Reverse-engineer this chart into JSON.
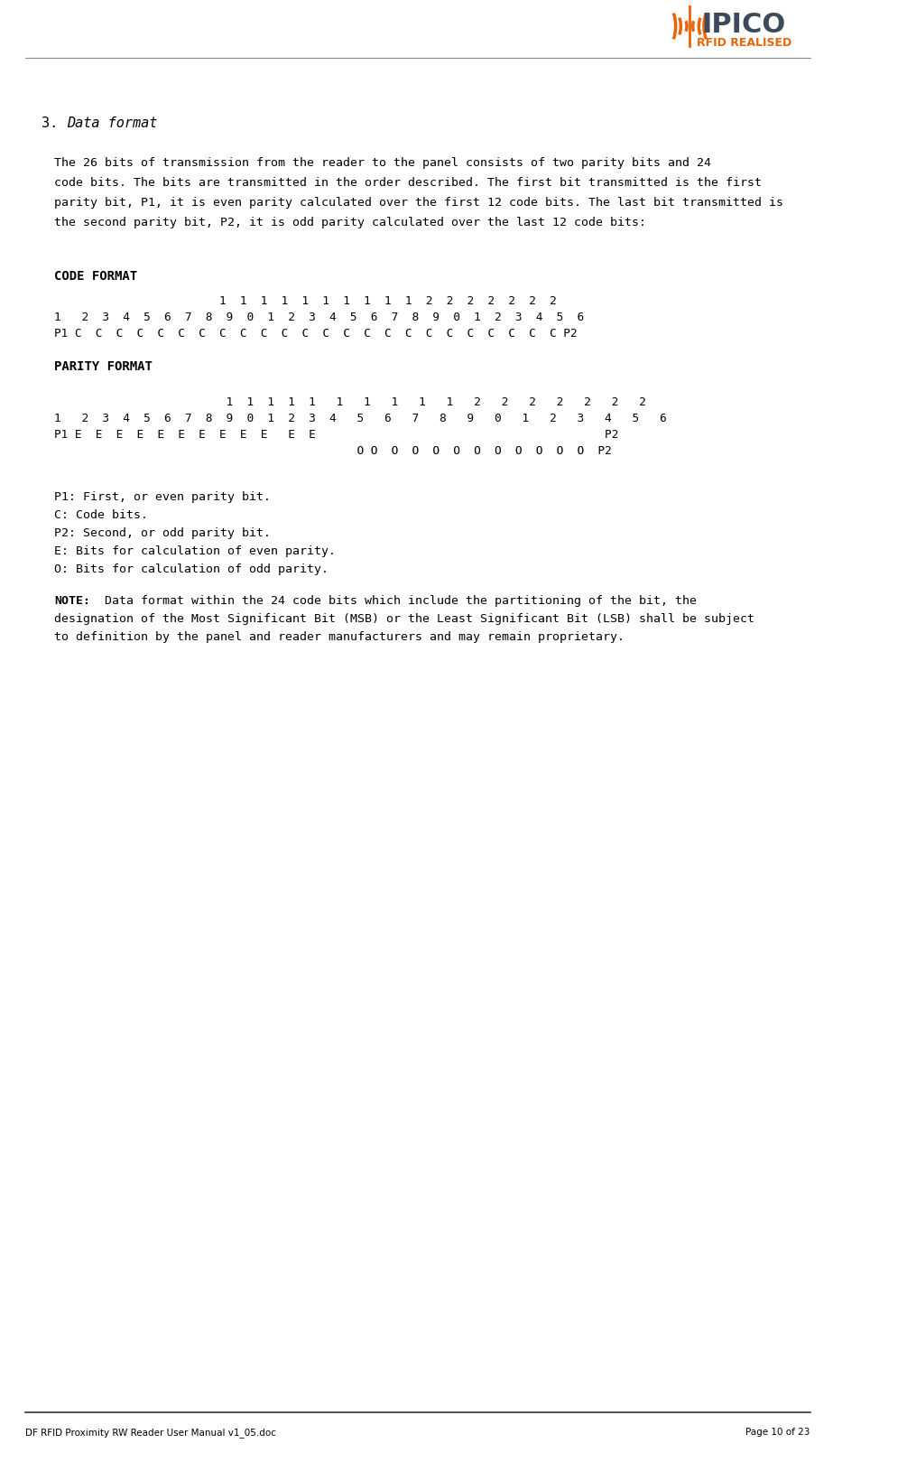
{
  "bg_color": "#ffffff",
  "logo_text": "IPICO",
  "logo_sub": "RFID REALISED",
  "logo_color": "#3d4a5c",
  "logo_orange": "#e8650a",
  "footer_left": "DF RFID Proximity RW Reader User Manual v1_05.doc",
  "footer_right": "Page 10 of 23",
  "section_num": "3.",
  "section_title": "Data format",
  "body_text": "The 26 bits of transmission from the reader to the panel consists of two parity bits and 24\ncode bits. The bits are transmitted in the order described. The first bit transmitted is the first\nparity bit, P1, it is even parity calculated over the first 12 code bits. The last bit transmitted is\nthe second parity bit, P2, it is odd parity calculated over the last 12 code bits:",
  "code_format_label": "CODE FORMAT",
  "code_row1": "                        1  1  1  1  1  1  1  1  1  1  2  2  2  2  2  2  2",
  "code_row2": "1   2  3  4  5  6  7  8  9  0  1  2  3  4  5  6  7  8  9  0  1  2  3  4  5  6",
  "code_row3": "P1 C  C  C  C  C  C  C  C  C  C  C  C  C  C  C  C  C  C  C  C  C  C  C  C P2",
  "parity_format_label": "PARITY FORMAT",
  "parity_row1": "                         1  1  1  1  1   1   1   1   1   1   2   2   2   2   2   2   2",
  "parity_row2": "1   2  3  4  5  6  7  8  9  0  1  2  3  4   5   6   7   8   9   0   1   2   3   4   5   6",
  "parity_row3": "P1 E  E  E  E  E  E  E  E  E  E   E  E                                          P2",
  "parity_row4": "                                            O O  O  O  O  O  O  O  O  O  O  O  P2",
  "legend_lines": [
    "P1: First, or even parity bit.",
    "C: Code bits.",
    "P2: Second, or odd parity bit.",
    "E: Bits for calculation of even parity.",
    "O: Bits for calculation of odd parity."
  ],
  "note_label": "NOTE:",
  "note_text": " Data format within the 24 code bits which include the partitioning of the bit, the\ndesignation of the Most Significant Bit (MSB) or the Least Significant Bit (LSB) shall be subject\nto definition by the panel and reader manufacturers and may remain proprietary."
}
